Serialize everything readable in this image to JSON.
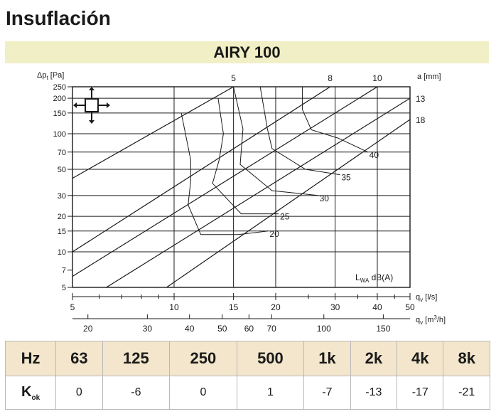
{
  "page": {
    "title": "Insuflación",
    "banner": "AIRY 100"
  },
  "colors": {
    "banner_bg": "#f1efc6",
    "table_header_bg": "#f3e6cc",
    "ink": "#1a1a1a",
    "cell_border": "#b9b9b9"
  },
  "icon": "four-way-air-diffuser-icon",
  "chart_data": {
    "type": "line",
    "y_label": {
      "main": "Δp",
      "sub": "t",
      "unit": " [Pa]"
    },
    "x_label": {
      "main": "q",
      "sub": "v",
      "unit": " [l/s]"
    },
    "x2_label": {
      "main": "q",
      "sub": "v",
      "unit": " [m",
      "sup": "3",
      "tail": "/h]"
    },
    "a_label": "a [mm]",
    "sound_label": {
      "main": "L",
      "sub": "WA",
      "unit": " dB(A)"
    },
    "x_scale": "log",
    "y_scale": "log",
    "xlim": [
      5,
      50
    ],
    "ylim": [
      5,
      250
    ],
    "y_ticks": [
      5,
      7,
      10,
      15,
      20,
      30,
      50,
      70,
      100,
      150,
      200,
      250
    ],
    "y_gridlines": [
      5,
      10,
      15,
      20,
      30,
      50,
      70,
      100,
      150,
      200,
      250
    ],
    "x_ticks": [
      5,
      10,
      15,
      20,
      30,
      40,
      50
    ],
    "x_gridlines": [
      10,
      15,
      20,
      30,
      40
    ],
    "x2_ticks": [
      20,
      30,
      40,
      50,
      60,
      70,
      100,
      150
    ],
    "series": [
      {
        "name": "5",
        "position": "top",
        "x": [
          5,
          15
        ],
        "y": [
          42,
          250
        ]
      },
      {
        "name": "8",
        "position": "top",
        "x": [
          5,
          29
        ],
        "y": [
          10,
          250
        ]
      },
      {
        "name": "10",
        "position": "top",
        "x": [
          5,
          40
        ],
        "y": [
          6.2,
          250
        ]
      },
      {
        "name": "13",
        "position": "right",
        "x": [
          6.3,
          50
        ],
        "y": [
          5,
          200
        ]
      },
      {
        "name": "18",
        "position": "right",
        "x": [
          9.5,
          50
        ],
        "y": [
          5,
          132
        ]
      }
    ],
    "sound_curves": [
      {
        "label": "20",
        "x": [
          10.5,
          11.2,
          11.2,
          11.0,
          12.0,
          15.5,
          19.0
        ],
        "y": [
          150,
          60,
          40,
          25,
          14,
          14,
          15
        ]
      },
      {
        "label": "25",
        "x": [
          13.5,
          14.0,
          13.6,
          13.0,
          15.8,
          20.4
        ],
        "y": [
          200,
          100,
          60,
          38,
          21,
          21
        ]
      },
      {
        "label": "30",
        "x": [
          15.0,
          16.0,
          15.7,
          19.5,
          26.7
        ],
        "y": [
          250,
          110,
          55,
          33,
          30
        ]
      },
      {
        "label": "35",
        "x": [
          18.0,
          18.9,
          19.5,
          24.5,
          31.0
        ],
        "y": [
          250,
          110,
          75,
          50,
          45
        ]
      },
      {
        "label": "40",
        "x": [
          24.0,
          24.0,
          25.5,
          30.6,
          37.5
        ],
        "y": [
          250,
          160,
          108,
          92,
          70
        ]
      }
    ]
  },
  "table": {
    "header_label": "Hz",
    "frequencies": [
      "63",
      "125",
      "250",
      "500",
      "1k",
      "2k",
      "4k",
      "8k"
    ],
    "row_label": {
      "main": "K",
      "sub": "ok"
    },
    "values": [
      "0",
      "-6",
      "0",
      "1",
      "-7",
      "-13",
      "-17",
      "-21"
    ]
  }
}
